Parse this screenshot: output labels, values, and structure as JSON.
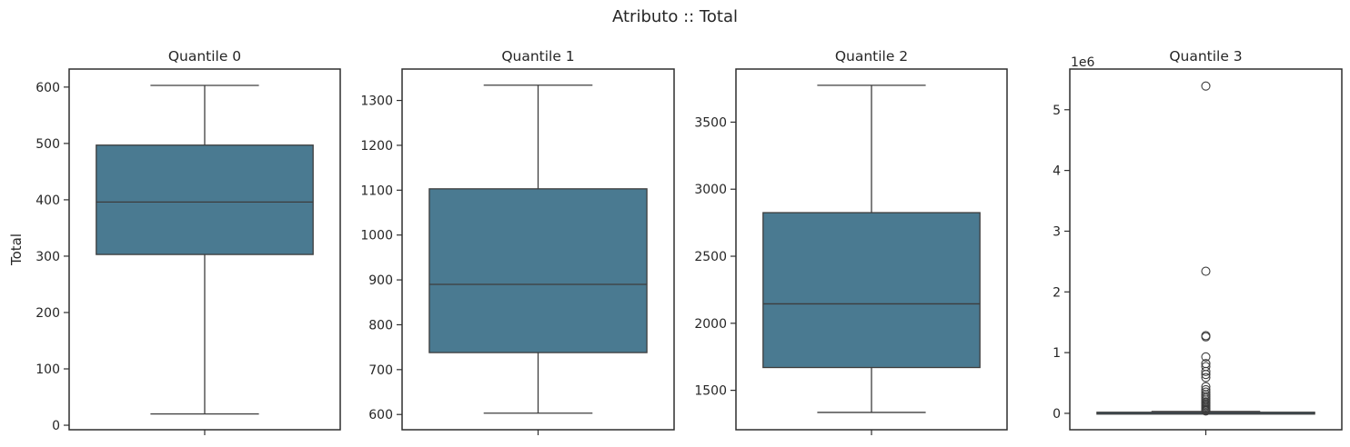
{
  "suptitle": "Atributo :: Total",
  "colors": {
    "box_fill": "#4a7a91",
    "line": "#3d3d3d",
    "spine": "#2e2e2e",
    "background": "#ffffff"
  },
  "chart_data": [
    {
      "type": "box",
      "title": "Quantile 0",
      "ylabel": "Total",
      "ylim": [
        -8,
        632
      ],
      "yticks": [
        0,
        100,
        200,
        300,
        400,
        500,
        600
      ],
      "ytick_labels": [
        "0",
        "100",
        "200",
        "300",
        "400",
        "500",
        "600"
      ],
      "offset_label": "",
      "stats": {
        "whislo": 20,
        "q1": 303,
        "median": 396,
        "q3": 497,
        "whishi": 603
      },
      "fliers": []
    },
    {
      "type": "box",
      "title": "Quantile 1",
      "ylabel": "",
      "ylim": [
        566,
        1370
      ],
      "yticks": [
        600,
        700,
        800,
        900,
        1000,
        1100,
        1200,
        1300
      ],
      "ytick_labels": [
        "600",
        "700",
        "800",
        "900",
        "1000",
        "1100",
        "1200",
        "1300"
      ],
      "offset_label": "",
      "stats": {
        "whislo": 603,
        "q1": 738,
        "median": 890,
        "q3": 1103,
        "whishi": 1334
      },
      "fliers": []
    },
    {
      "type": "box",
      "title": "Quantile 2",
      "ylabel": "",
      "ylim": [
        1206,
        3896
      ],
      "yticks": [
        1500,
        2000,
        2500,
        3000,
        3500
      ],
      "ytick_labels": [
        "1500",
        "2000",
        "2500",
        "3000",
        "3500"
      ],
      "offset_label": "",
      "stats": {
        "whislo": 1335,
        "q1": 1670,
        "median": 2145,
        "q3": 2825,
        "whishi": 3775
      },
      "fliers": []
    },
    {
      "type": "box",
      "title": "Quantile 3",
      "ylabel": "",
      "ylim": [
        -0.27,
        5.67
      ],
      "yticks": [
        0,
        1,
        2,
        3,
        4,
        5
      ],
      "ytick_labels": [
        "0",
        "1",
        "2",
        "3",
        "4",
        "5"
      ],
      "offset_label": "1e6",
      "stats": {
        "whislo": 0.004,
        "q1": 0.008,
        "median": 0.012,
        "q3": 0.018,
        "whishi": 0.03
      },
      "fliers": [
        5.39,
        2.34,
        1.28,
        1.26,
        0.93,
        0.82,
        0.77,
        0.69,
        0.64,
        0.59,
        0.44,
        0.39,
        0.35,
        0.31,
        0.28,
        0.25,
        0.22,
        0.19,
        0.17,
        0.15,
        0.13,
        0.11,
        0.09,
        0.07,
        0.055,
        0.045,
        0.04
      ]
    }
  ]
}
